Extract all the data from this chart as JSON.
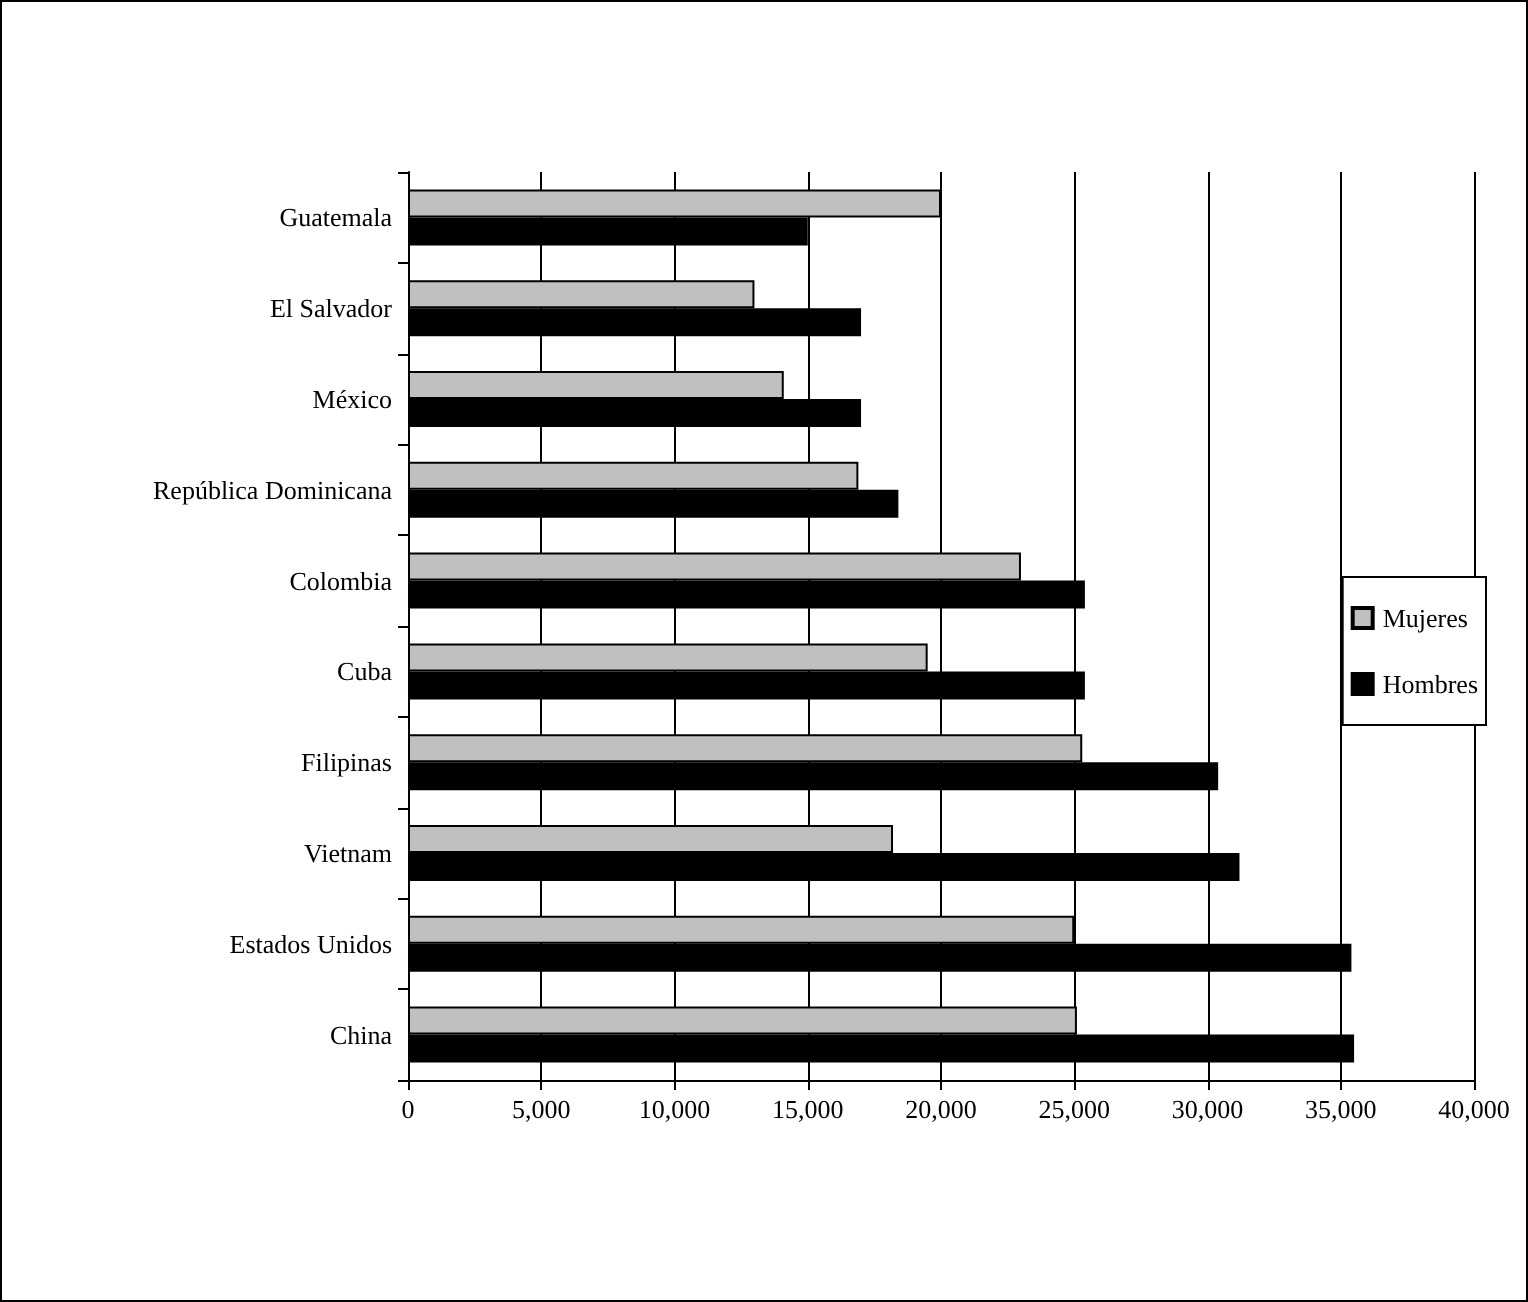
{
  "chart_data": {
    "type": "bar",
    "orientation": "horizontal",
    "categories": [
      "Guatemala",
      "El Salvador",
      "México",
      "República Dominicana",
      "Colombia",
      "Cuba",
      "Filipinas",
      "Vietnam",
      "Estados Unidos",
      "China"
    ],
    "series": [
      {
        "name": "Mujeres",
        "color": "#c0c0c0",
        "values": [
          20000,
          13000,
          14100,
          16900,
          23000,
          19500,
          25300,
          18200,
          25000,
          25100
        ]
      },
      {
        "name": "Hombres",
        "color": "#000000",
        "values": [
          15000,
          17000,
          17000,
          18400,
          25400,
          25400,
          30400,
          31200,
          35400,
          35500
        ]
      }
    ],
    "xlim": [
      0,
      40000
    ],
    "xticks": [
      0,
      {
        "value": 5000,
        "label": "5,000"
      },
      {
        "value": 10000,
        "label": "10,000"
      },
      {
        "value": 15000,
        "label": "15,000"
      },
      {
        "value": 20000,
        "label": "20,000"
      },
      {
        "value": 25000,
        "label": "25,000"
      },
      {
        "value": 30000,
        "label": "30,000"
      },
      {
        "value": 35000,
        "label": "35,000"
      },
      {
        "value": 40000,
        "label": "40,000"
      }
    ],
    "grid": "x",
    "legend": "right"
  }
}
